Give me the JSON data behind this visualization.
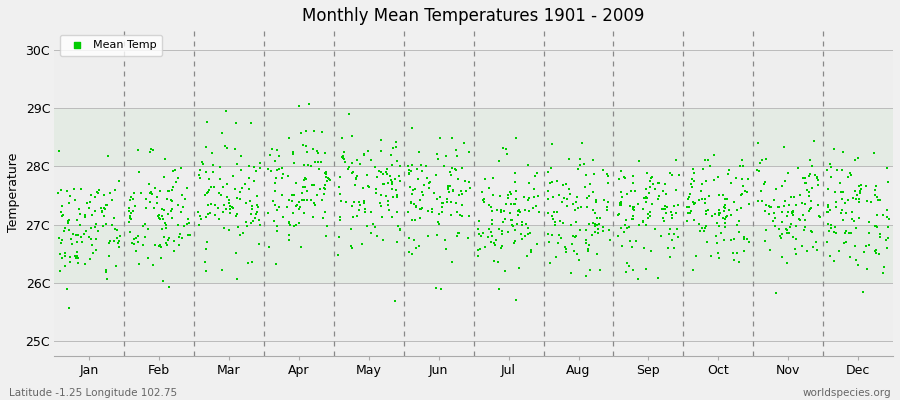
{
  "title": "Monthly Mean Temperatures 1901 - 2009",
  "ylabel": "Temperature",
  "xlabel_labels": [
    "Jan",
    "Feb",
    "Mar",
    "Apr",
    "May",
    "Jun",
    "Jul",
    "Aug",
    "Sep",
    "Oct",
    "Nov",
    "Dec"
  ],
  "ytick_labels": [
    "25C",
    "26C",
    "27C",
    "28C",
    "29C",
    "30C"
  ],
  "ytick_values": [
    25,
    26,
    27,
    28,
    29,
    30
  ],
  "ylim": [
    24.75,
    30.35
  ],
  "dot_color": "#00CC00",
  "dot_size": 3,
  "background_color": "#F0F0F0",
  "plot_bg_color": "#FFFFFF",
  "band_color": "#E8EEE8",
  "grid_color": "#CCCCCC",
  "vline_color": "#888888",
  "legend_label": "Mean Temp",
  "footer_left": "Latitude -1.25 Longitude 102.75",
  "footer_right": "worldspecies.org",
  "n_years": 109,
  "month_means": [
    26.9,
    27.1,
    27.5,
    27.7,
    27.6,
    27.4,
    27.2,
    27.1,
    27.2,
    27.3,
    27.3,
    27.2
  ],
  "month_stds": [
    0.5,
    0.55,
    0.52,
    0.52,
    0.55,
    0.52,
    0.52,
    0.5,
    0.5,
    0.5,
    0.52,
    0.52
  ],
  "seed": 42
}
